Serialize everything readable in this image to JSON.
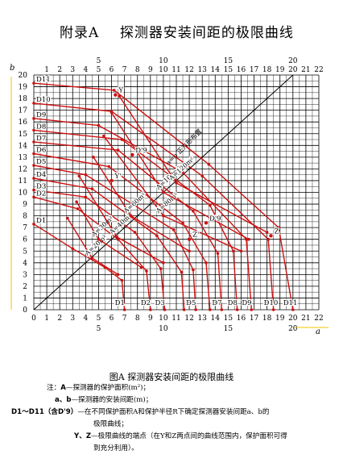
{
  "heading": {
    "prefix": "附录A",
    "title": "探测器安装间距的极限曲线"
  },
  "chart_data": {
    "type": "line",
    "xlabel": "a",
    "ylabel": "b",
    "xlim": [
      0,
      22
    ],
    "ylim": [
      0,
      20
    ],
    "x_ticks": [
      1,
      2,
      3,
      4,
      5,
      6,
      7,
      8,
      9,
      10,
      11,
      12,
      13,
      14,
      15,
      16,
      17,
      18,
      19,
      20,
      21,
      22
    ],
    "y_ticks": [
      1,
      2,
      3,
      4,
      5,
      6,
      7,
      8,
      9,
      10,
      11,
      12,
      13,
      14,
      15,
      16,
      17,
      18,
      19,
      20
    ],
    "grid": true,
    "series": [
      {
        "name": "D1",
        "points": [
          [
            0,
            7.3
          ],
          [
            3.0,
            5.2
          ],
          [
            5.5,
            3.6
          ],
          [
            6.8,
            2.5
          ],
          [
            7.0,
            0
          ]
        ]
      },
      {
        "name": "D2",
        "points": [
          [
            0,
            9.6
          ],
          [
            3.4,
            8.6
          ],
          [
            6.5,
            6.0
          ],
          [
            8.7,
            3.3
          ],
          [
            9.0,
            0
          ]
        ]
      },
      {
        "name": "D3",
        "points": [
          [
            0,
            10.2
          ],
          [
            4.0,
            9.6
          ],
          [
            7.8,
            6.6
          ],
          [
            9.8,
            3.5
          ],
          [
            10.1,
            0
          ]
        ]
      },
      {
        "name": "D4",
        "points": [
          [
            0,
            11.2
          ],
          [
            4.5,
            10.3
          ],
          [
            9.5,
            6.3
          ],
          [
            11.4,
            3.2
          ],
          [
            11.6,
            0
          ]
        ]
      },
      {
        "name": "D5",
        "points": [
          [
            0,
            12.3
          ],
          [
            4.0,
            11.5
          ],
          [
            10.8,
            6.8
          ],
          [
            12.3,
            3.4
          ],
          [
            12.5,
            0
          ]
        ]
      },
      {
        "name": "D6",
        "points": [
          [
            0,
            13.3
          ],
          [
            5.8,
            12.2
          ],
          [
            11.5,
            7.4
          ],
          [
            13.3,
            4.0
          ],
          [
            13.6,
            0
          ]
        ]
      },
      {
        "name": "D7",
        "points": [
          [
            0,
            14.3
          ],
          [
            6.5,
            13.6
          ],
          [
            12.3,
            8.4
          ],
          [
            14.2,
            4.8
          ],
          [
            14.5,
            0
          ]
        ]
      },
      {
        "name": "D8",
        "points": [
          [
            0,
            15.3
          ],
          [
            6.8,
            14.5
          ],
          [
            13.6,
            8.9
          ],
          [
            15.4,
            5.0
          ],
          [
            15.7,
            0
          ]
        ]
      },
      {
        "name": "D9",
        "points": [
          [
            0,
            16.3
          ],
          [
            5.0,
            15.7
          ],
          [
            11.5,
            11.7
          ],
          [
            16.4,
            6.0
          ],
          [
            16.8,
            0
          ]
        ]
      },
      {
        "name": "D10",
        "points": [
          [
            0,
            17.6
          ],
          [
            6.0,
            16.9
          ],
          [
            13.0,
            11.4
          ],
          [
            18.1,
            6.0
          ],
          [
            18.5,
            0
          ]
        ]
      },
      {
        "name": "D11",
        "points": [
          [
            0,
            19.3
          ],
          [
            6.2,
            18.7
          ],
          [
            13.5,
            12.4
          ],
          [
            18.9,
            7.0
          ],
          [
            20.0,
            0
          ]
        ]
      },
      {
        "name": "A=20m²",
        "points": [
          [
            2.6,
            7.8
          ],
          [
            4.5,
            4.4
          ],
          [
            6.5,
            3.0
          ]
        ]
      },
      {
        "name": "A=30m²",
        "points": [
          [
            3.3,
            9.2
          ],
          [
            5.0,
            6.0
          ],
          [
            8.3,
            3.6
          ]
        ]
      },
      {
        "name": "A=40m²",
        "points": [
          [
            3.5,
            11.4
          ],
          [
            6.4,
            6.2
          ],
          [
            10.0,
            4.0
          ]
        ]
      },
      {
        "name": "A=60m²",
        "points": [
          [
            4.6,
            13.0
          ],
          [
            7.5,
            8.0
          ],
          [
            12.0,
            5.0
          ]
        ]
      },
      {
        "name": "A=80m²",
        "points": [
          [
            5.4,
            14.8
          ],
          [
            10.0,
            8.0
          ],
          [
            16.0,
            5.0
          ]
        ]
      },
      {
        "name": "A=100m²",
        "points": [
          [
            6.0,
            16.8
          ],
          [
            10.0,
            10.0
          ],
          [
            16.6,
            6.0
          ]
        ]
      },
      {
        "name": "A=120m²",
        "points": [
          [
            6.6,
            18.2
          ],
          [
            11.0,
            10.8
          ],
          [
            18.0,
            6.6
          ]
        ]
      }
    ],
    "diagonal": {
      "label": "a=b 正方形布置",
      "points": [
        [
          0,
          0
        ],
        [
          20,
          20
        ]
      ]
    },
    "points": [
      {
        "label": "Y",
        "x": 6.3,
        "y": 18.3
      },
      {
        "label": "Y'",
        "x": 6.0,
        "y": 11.0
      },
      {
        "label": "Z",
        "x": 18.3,
        "y": 6.3
      },
      {
        "label": "Z'",
        "x": 12.0,
        "y": 6.0
      },
      {
        "label": "D'9",
        "x": 7.6,
        "y": 13.2
      },
      {
        "label": "D'9",
        "x": 13.3,
        "y": 7.4
      }
    ],
    "curve_labels_right": [
      "D11",
      "D10",
      "D9",
      "D8",
      "D7",
      "D6",
      "D5",
      "D4",
      "D3",
      "D2",
      "D1"
    ],
    "curve_labels_bottom": [
      "D1",
      "D2",
      "D3",
      "D5",
      "D7",
      "D8",
      "D9",
      "D10",
      "D11"
    ]
  },
  "figure_caption": {
    "label": "图A",
    "title": "探测器安装间距的极限曲线"
  },
  "notes": [
    {
      "key": "A",
      "text": "—探测器的保护面积(m²)；",
      "prefix": "注："
    },
    {
      "key": "a、b",
      "text": "—探测器的安装间距(m)；",
      "prefix": ""
    },
    {
      "key": "D1～D11（含D'9）",
      "text": "—在不同保护面积A和保护半径R下确定探测器安装间距a、b的",
      "prefix": ""
    },
    {
      "key": "",
      "text": "极限曲线；",
      "prefix": ""
    },
    {
      "key": "Y、Z",
      "text": "—极限曲线的端点（在Y和Z两点间的曲线范围内，保护面积可得",
      "prefix": ""
    },
    {
      "key": "",
      "text": "到充分利用）。",
      "prefix": ""
    }
  ],
  "colors": {
    "grid": "#000000",
    "curve": "#cc1111",
    "accent": "#f2c400"
  }
}
